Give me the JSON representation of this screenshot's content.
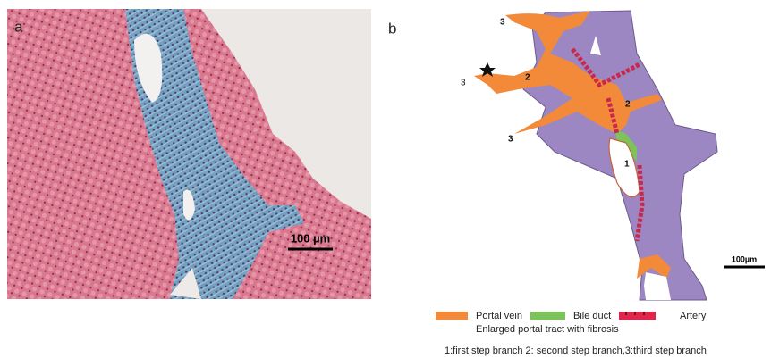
{
  "panel_a": {
    "label": "a",
    "scale_bar": "100 µm"
  },
  "panel_b": {
    "label": "b",
    "scale_bar": "100µm",
    "branch_labels": [
      "3",
      "3",
      "2",
      "2",
      "3",
      "1"
    ]
  },
  "legend": {
    "items": [
      "Portal vein",
      "Bile duct",
      "Artery"
    ],
    "note": "Enlarged portal tract with fibrosis",
    "caption": "1:first step branch 2: second step branch,3:third step branch"
  }
}
